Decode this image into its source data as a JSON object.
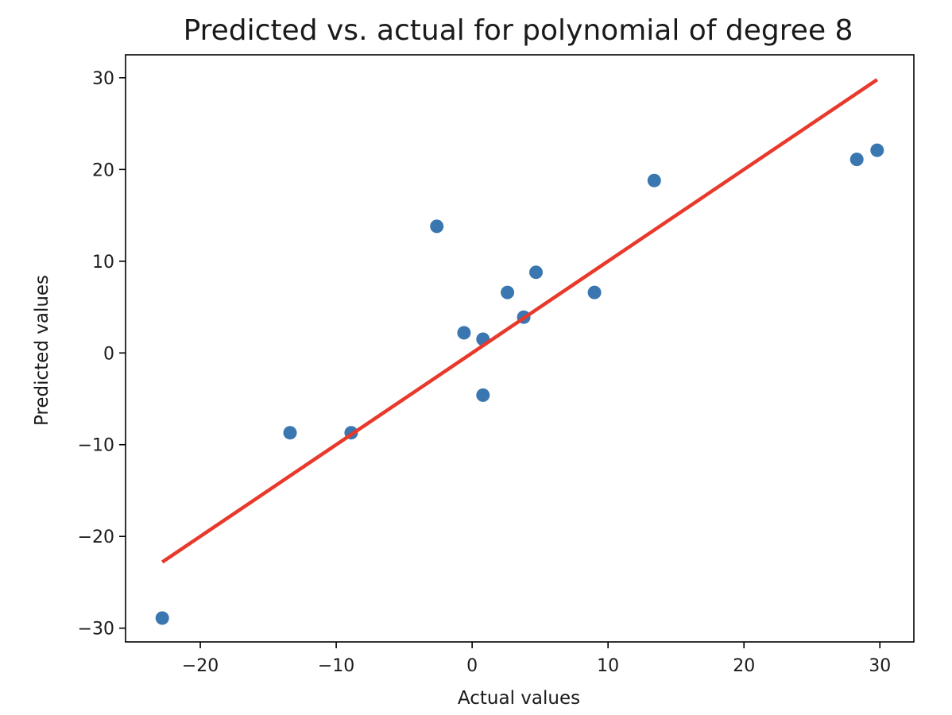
{
  "chart_data": {
    "type": "scatter",
    "title": "Predicted vs. actual for polynomial of degree 8",
    "xlabel": "Actual values",
    "ylabel": "Predicted values",
    "xlim": [
      -25.5,
      32.5
    ],
    "ylim": [
      -31.5,
      32.5
    ],
    "x_ticks": [
      -20,
      -10,
      0,
      10,
      20,
      30
    ],
    "y_ticks": [
      -30,
      -20,
      -10,
      0,
      10,
      20,
      30
    ],
    "x_tick_labels": [
      "−20",
      "−10",
      "0",
      "10",
      "20",
      "30"
    ],
    "y_tick_labels": [
      "−30",
      "−20",
      "−10",
      "0",
      "10",
      "20",
      "30"
    ],
    "grid": false,
    "point_color": "#3a76b0",
    "line_color": "#e8392b",
    "points": [
      {
        "x": -22.8,
        "y": -28.9
      },
      {
        "x": -13.4,
        "y": -8.7
      },
      {
        "x": -8.9,
        "y": -8.7
      },
      {
        "x": -2.6,
        "y": 13.8
      },
      {
        "x": -0.6,
        "y": 2.2
      },
      {
        "x": 0.8,
        "y": 1.5
      },
      {
        "x": 0.8,
        "y": -4.6
      },
      {
        "x": 2.6,
        "y": 6.6
      },
      {
        "x": 3.8,
        "y": 3.9
      },
      {
        "x": 4.7,
        "y": 8.8
      },
      {
        "x": 9.0,
        "y": 6.6
      },
      {
        "x": 13.4,
        "y": 18.8
      },
      {
        "x": 28.3,
        "y": 21.1
      },
      {
        "x": 29.8,
        "y": 22.1
      }
    ],
    "reference_line": {
      "x": [
        -22.8,
        29.8
      ],
      "y": [
        -22.8,
        29.8
      ]
    }
  }
}
